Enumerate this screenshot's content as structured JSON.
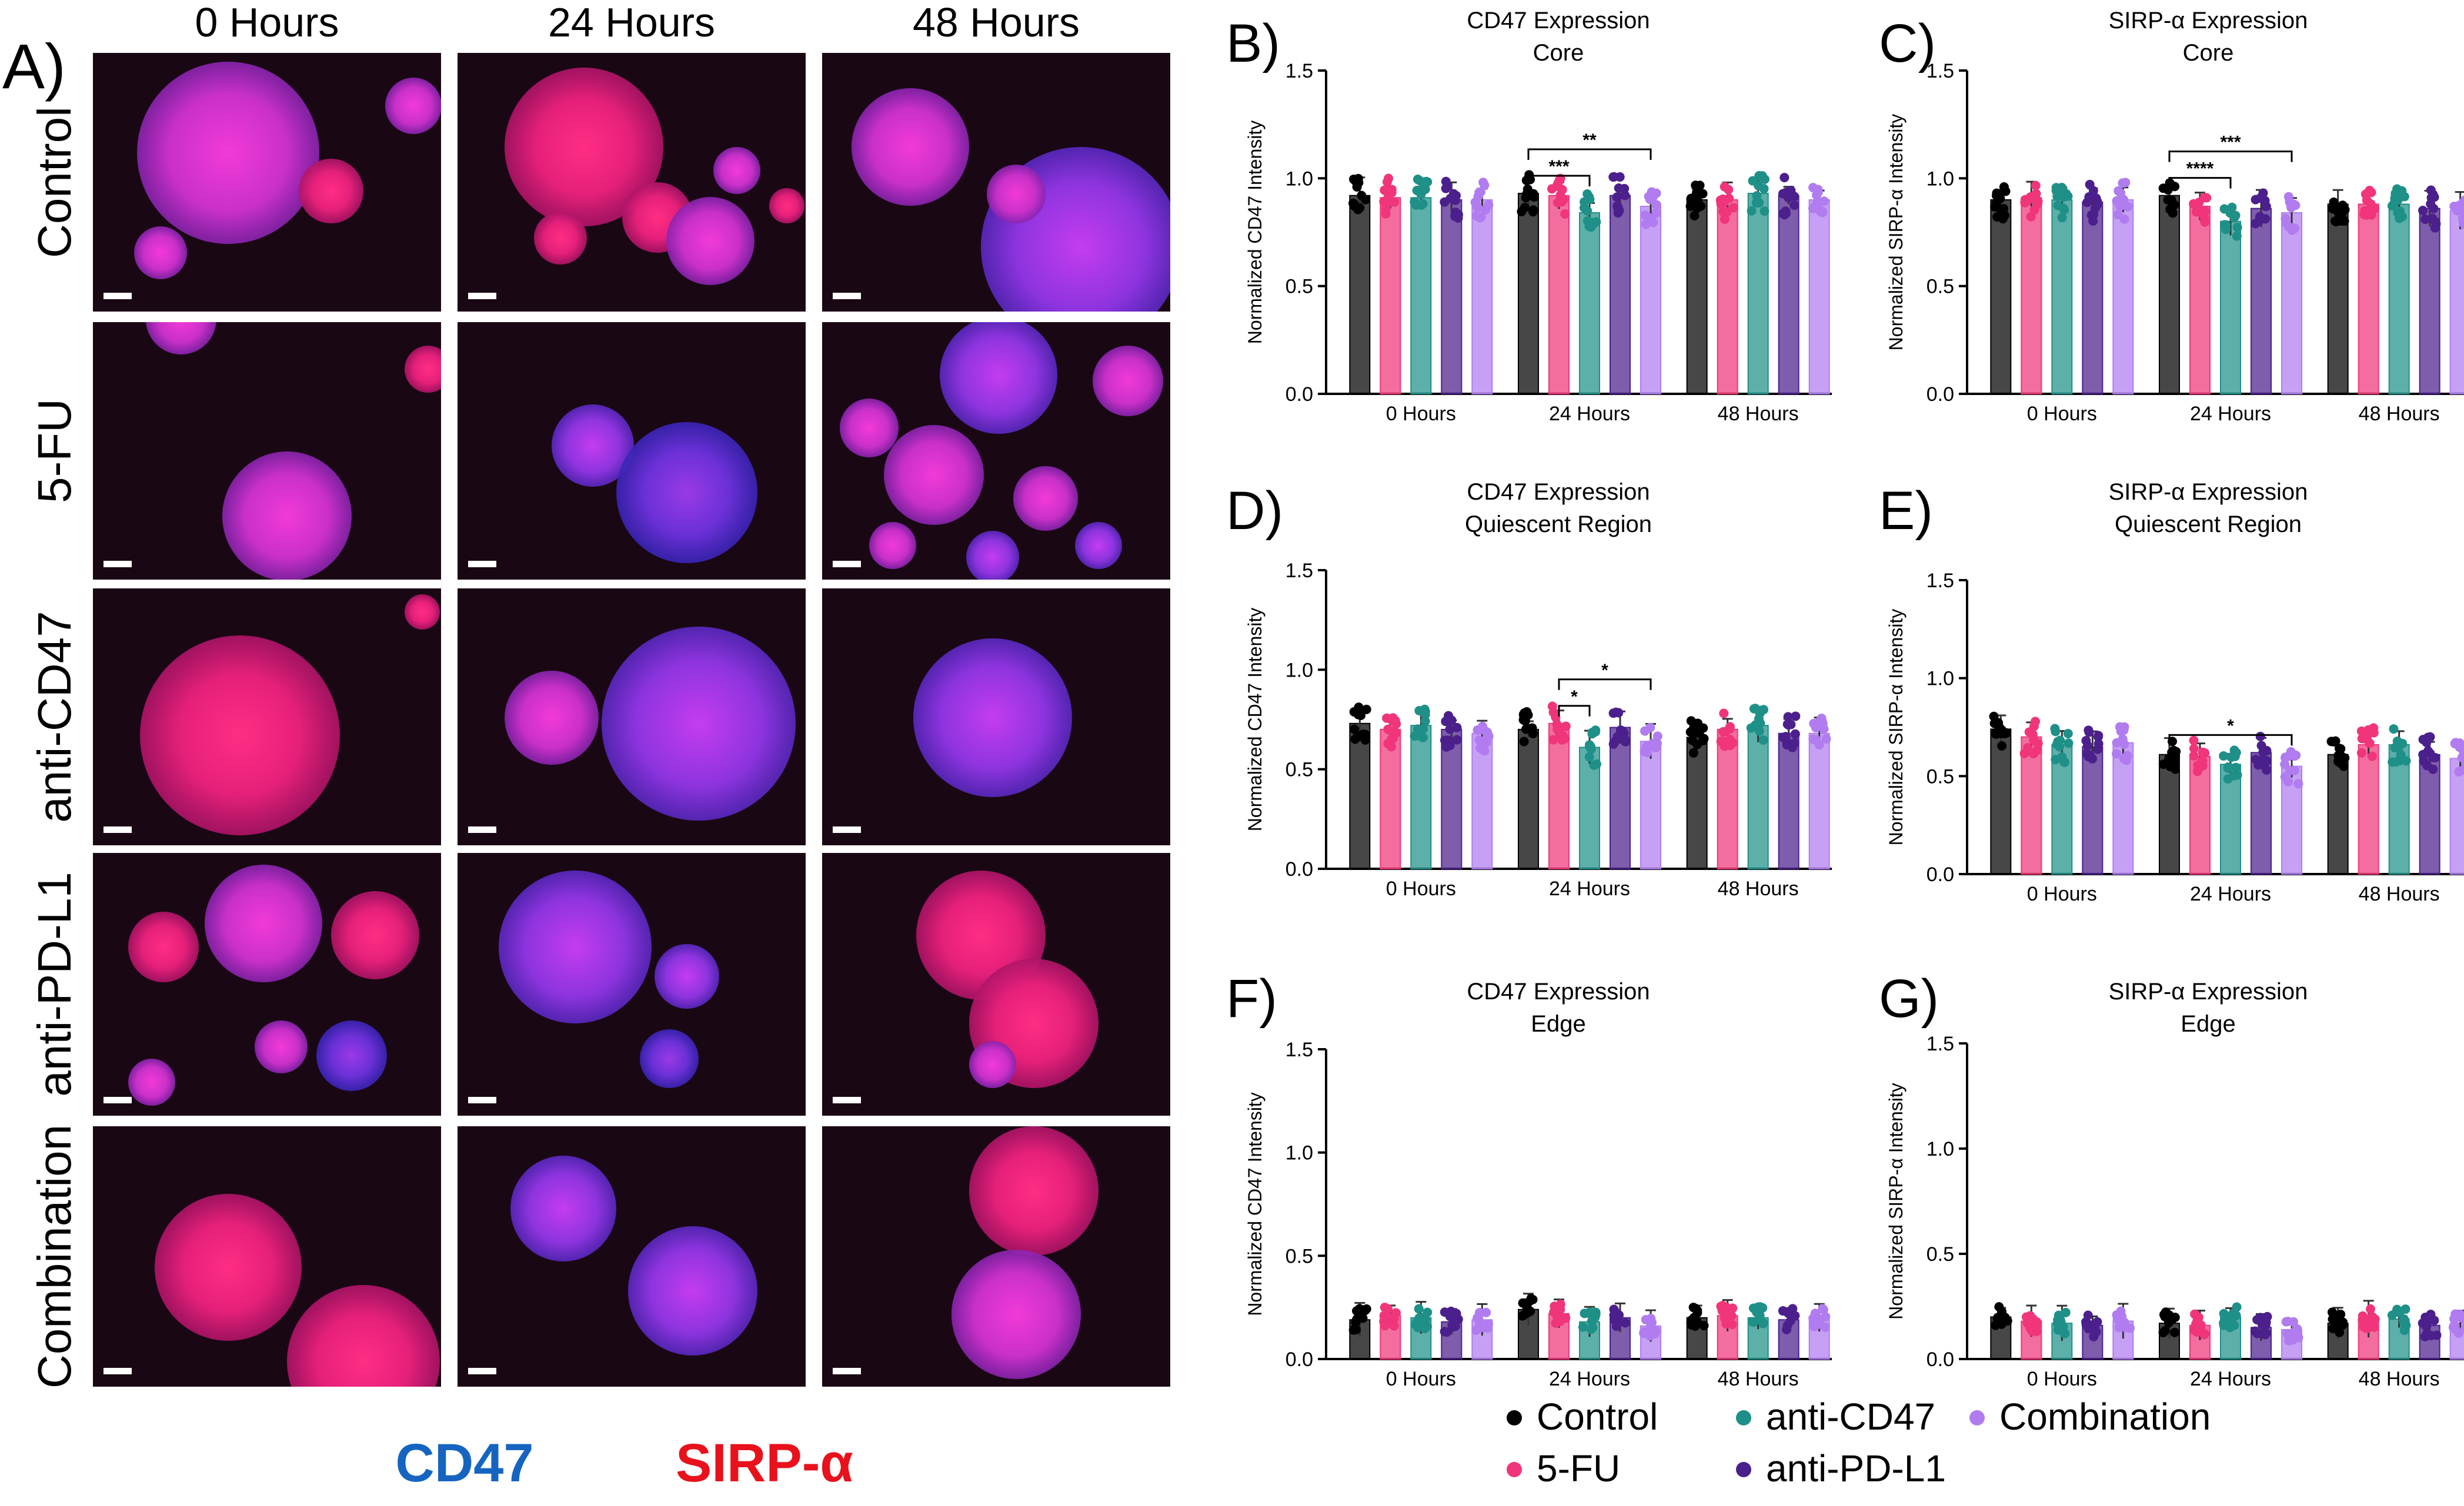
{
  "panel_a": {
    "label": "A)",
    "columns": [
      "0 Hours",
      "24 Hours",
      "48 Hours"
    ],
    "rows": [
      "Control",
      "5-FU",
      "anti-CD47",
      "anti-PD-L1",
      "Combination"
    ],
    "stain_legend": [
      {
        "text": "CD47",
        "color": "#1565c0"
      },
      {
        "text": "SIRP-α",
        "color": "#e8111c"
      }
    ]
  },
  "legend": [
    {
      "name": "Control",
      "color": "#000000"
    },
    {
      "name": "5-FU",
      "color": "#f0357a"
    },
    {
      "name": "anti-CD47",
      "color": "#1e9088"
    },
    {
      "name": "anti-PD-L1",
      "color": "#4b1f8c"
    },
    {
      "name": "Combination",
      "color": "#b07cf0"
    }
  ],
  "chart_data": [
    {
      "panel": "B)",
      "type": "bar",
      "title": "CD47 Expression",
      "subtitle": "Core",
      "ylabel": "Normalized CD47 Intensity",
      "ylim": [
        0,
        1.5
      ],
      "yticks": [
        "0.0",
        "0.5",
        "1.0",
        "1.5"
      ],
      "categories": [
        "0 Hours",
        "24 Hours",
        "48 Hours"
      ],
      "series": [
        {
          "name": "Control",
          "values": [
            0.92,
            0.93,
            0.9
          ]
        },
        {
          "name": "5-FU",
          "values": [
            0.91,
            0.92,
            0.9
          ]
        },
        {
          "name": "anti-CD47",
          "values": [
            0.91,
            0.84,
            0.93
          ]
        },
        {
          "name": "anti-PD-L1",
          "values": [
            0.9,
            0.92,
            0.92
          ]
        },
        {
          "name": "Combination",
          "values": [
            0.9,
            0.87,
            0.9
          ]
        }
      ],
      "significance": [
        {
          "category": "24 Hours",
          "from": 0,
          "to": 2,
          "text": "***"
        },
        {
          "category": "24 Hours",
          "from": 0,
          "to": 4,
          "text": "**"
        }
      ]
    },
    {
      "panel": "C)",
      "type": "bar",
      "title": "SIRP-α Expression",
      "subtitle": "Core",
      "ylabel": "Normalized SIRP-α Intensity",
      "ylim": [
        0,
        1.5
      ],
      "yticks": [
        "0.0",
        "0.5",
        "1.0",
        "1.5"
      ],
      "categories": [
        "0 Hours",
        "24 Hours",
        "48 Hours"
      ],
      "series": [
        {
          "name": "Control",
          "values": [
            0.9,
            0.92,
            0.88
          ]
        },
        {
          "name": "5-FU",
          "values": [
            0.91,
            0.87,
            0.88
          ]
        },
        {
          "name": "anti-CD47",
          "values": [
            0.9,
            0.8,
            0.88
          ]
        },
        {
          "name": "anti-PD-L1",
          "values": [
            0.89,
            0.86,
            0.86
          ]
        },
        {
          "name": "Combination",
          "values": [
            0.9,
            0.84,
            0.85
          ]
        }
      ],
      "significance": [
        {
          "category": "24 Hours",
          "from": 0,
          "to": 2,
          "text": "****"
        },
        {
          "category": "24 Hours",
          "from": 0,
          "to": 4,
          "text": "***"
        }
      ]
    },
    {
      "panel": "D)",
      "type": "bar",
      "title": "CD47 Expression",
      "subtitle": "Quiescent Region",
      "ylabel": "Normalized CD47 Intensity",
      "ylim": [
        0,
        1.5
      ],
      "yticks": [
        "0.0",
        "0.5",
        "1.0",
        "1.5"
      ],
      "categories": [
        "0 Hours",
        "24 Hours",
        "48 Hours"
      ],
      "series": [
        {
          "name": "Control",
          "values": [
            0.73,
            0.7,
            0.66
          ]
        },
        {
          "name": "5-FU",
          "values": [
            0.7,
            0.73,
            0.7
          ]
        },
        {
          "name": "anti-CD47",
          "values": [
            0.72,
            0.61,
            0.72
          ]
        },
        {
          "name": "anti-PD-L1",
          "values": [
            0.7,
            0.71,
            0.68
          ]
        },
        {
          "name": "Combination",
          "values": [
            0.68,
            0.64,
            0.68
          ]
        }
      ],
      "significance": [
        {
          "category": "24 Hours",
          "from": 1,
          "to": 2,
          "text": "*"
        },
        {
          "category": "24 Hours",
          "from": 1,
          "to": 4,
          "text": "*"
        }
      ]
    },
    {
      "panel": "E)",
      "type": "bar",
      "title": "SIRP-α Expression",
      "subtitle": "Quiescent Region",
      "ylabel": "Normalized SIRP-α Intensity",
      "ylim": [
        0,
        1.5
      ],
      "yticks": [
        "0.0",
        "0.5",
        "1.0",
        "1.5"
      ],
      "categories": [
        "0 Hours",
        "24 Hours",
        "48 Hours"
      ],
      "series": [
        {
          "name": "Control",
          "values": [
            0.74,
            0.61,
            0.61
          ]
        },
        {
          "name": "5-FU",
          "values": [
            0.7,
            0.6,
            0.66
          ]
        },
        {
          "name": "anti-CD47",
          "values": [
            0.66,
            0.56,
            0.66
          ]
        },
        {
          "name": "anti-PD-L1",
          "values": [
            0.65,
            0.62,
            0.61
          ]
        },
        {
          "name": "Combination",
          "values": [
            0.67,
            0.55,
            0.59
          ]
        }
      ],
      "significance": [
        {
          "category": "24 Hours",
          "from": 0,
          "to": 4,
          "text": "*"
        }
      ]
    },
    {
      "panel": "F)",
      "type": "bar",
      "title": "CD47 Expression",
      "subtitle": "Edge",
      "ylabel": "Normalized CD47 Intensity",
      "ylim": [
        0,
        1.5
      ],
      "yticks": [
        "0.0",
        "0.5",
        "1.0",
        "1.5"
      ],
      "categories": [
        "0 Hours",
        "24 Hours",
        "48 Hours"
      ],
      "series": [
        {
          "name": "Control",
          "values": [
            0.19,
            0.24,
            0.2
          ]
        },
        {
          "name": "5-FU",
          "values": [
            0.21,
            0.22,
            0.21
          ]
        },
        {
          "name": "anti-CD47",
          "values": [
            0.2,
            0.18,
            0.2
          ]
        },
        {
          "name": "anti-PD-L1",
          "values": [
            0.18,
            0.2,
            0.19
          ]
        },
        {
          "name": "Combination",
          "values": [
            0.19,
            0.16,
            0.2
          ]
        }
      ],
      "significance": []
    },
    {
      "panel": "G)",
      "type": "bar",
      "title": "SIRP-α Expression",
      "subtitle": "Edge",
      "ylabel": "Normalized SIRP-α Intensity",
      "ylim": [
        0,
        1.5
      ],
      "yticks": [
        "0.0",
        "0.5",
        "1.0",
        "1.5"
      ],
      "categories": [
        "0 Hours",
        "24 Hours",
        "48 Hours"
      ],
      "series": [
        {
          "name": "Control",
          "values": [
            0.2,
            0.17,
            0.17
          ]
        },
        {
          "name": "5-FU",
          "values": [
            0.18,
            0.16,
            0.19
          ]
        },
        {
          "name": "anti-CD47",
          "values": [
            0.17,
            0.2,
            0.19
          ]
        },
        {
          "name": "anti-PD-L1",
          "values": [
            0.16,
            0.15,
            0.16
          ]
        },
        {
          "name": "Combination",
          "values": [
            0.18,
            0.14,
            0.17
          ]
        }
      ],
      "significance": []
    }
  ]
}
